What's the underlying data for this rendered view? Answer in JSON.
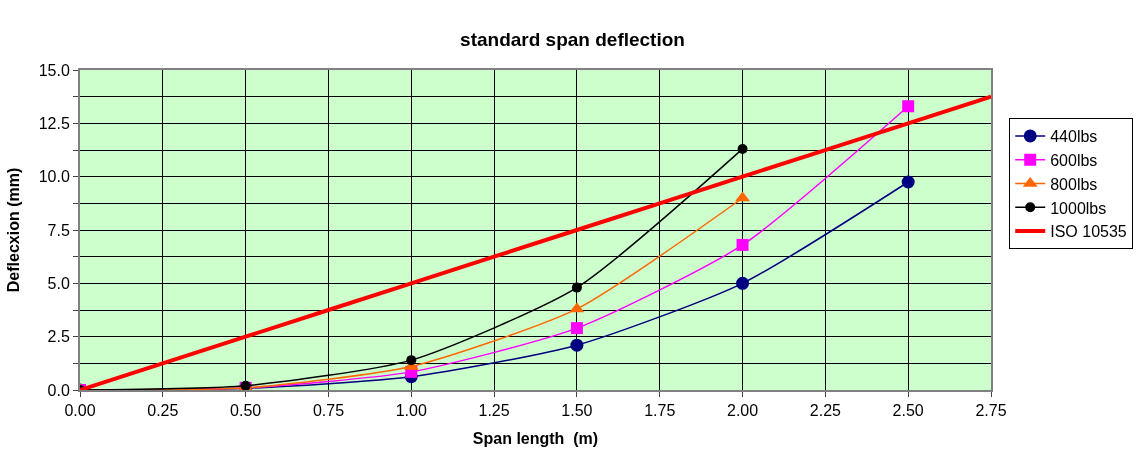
{
  "chart_data": {
    "type": "line",
    "title": "standard span deflection",
    "xlabel": "Span length  (m)",
    "ylabel": "Deflecxion (mm)",
    "series": [
      {
        "name": "440lbs",
        "color": "#000080",
        "marker": "circle",
        "x": [
          0,
          0.5,
          1.0,
          1.5,
          2.0,
          2.5
        ],
        "values": [
          0,
          0.08,
          0.62,
          2.1,
          5.0,
          9.75
        ]
      },
      {
        "name": "600lbs",
        "color": "#ff00ff",
        "marker": "square",
        "x": [
          0,
          0.5,
          1.0,
          1.5,
          2.0,
          2.5
        ],
        "values": [
          0,
          0.1,
          0.85,
          2.9,
          6.8,
          13.3
        ]
      },
      {
        "name": "800lbs",
        "color": "#ff6600",
        "marker": "triangle",
        "x": [
          0,
          0.5,
          1.0,
          1.5,
          2.0
        ],
        "values": [
          0,
          0.1,
          1.1,
          3.8,
          9.0
        ]
      },
      {
        "name": "1000lbs",
        "color": "#000000",
        "marker": "circle",
        "x": [
          0,
          0.5,
          1.0,
          1.5,
          2.0
        ],
        "values": [
          0,
          0.2,
          1.4,
          4.8,
          11.3
        ]
      },
      {
        "name": "ISO 10535",
        "color": "#ff0000",
        "marker": "none",
        "x": [
          0,
          0.5,
          1.0,
          1.5,
          2.0,
          2.5,
          2.75
        ],
        "values": [
          0,
          2.5,
          5.0,
          7.5,
          10.0,
          12.5,
          13.75
        ]
      }
    ],
    "xlim": [
      0,
      2.75
    ],
    "xticks": [
      {
        "value": 0,
        "label": "0.00"
      },
      0.25,
      {
        "value": 0.5,
        "label": "0.50"
      },
      0.75,
      {
        "value": 1,
        "label": "1.00"
      },
      1.25,
      {
        "value": 1.5,
        "label": "1.50"
      },
      1.75,
      {
        "value": 2,
        "label": "2.00"
      },
      2.25,
      {
        "value": 2.5,
        "label": "2.50"
      },
      2.75
    ],
    "ylim": [
      0,
      15
    ],
    "yticks": [
      {
        "value": 0,
        "label": "0.0"
      },
      {
        "value": 1.25,
        "label": null
      },
      2.5,
      {
        "value": 3.75,
        "label": null
      },
      {
        "value": 5,
        "label": "5.0"
      },
      {
        "value": 6.25,
        "label": null
      },
      7.5,
      {
        "value": 8.75,
        "label": null
      },
      {
        "value": 10,
        "label": "10.0"
      },
      {
        "value": 11.25,
        "label": null
      },
      12.5,
      {
        "value": 13.75,
        "label": null
      },
      {
        "value": 15,
        "label": "15.0"
      }
    ],
    "grid": true,
    "legend": "right",
    "line_style": "solid"
  }
}
